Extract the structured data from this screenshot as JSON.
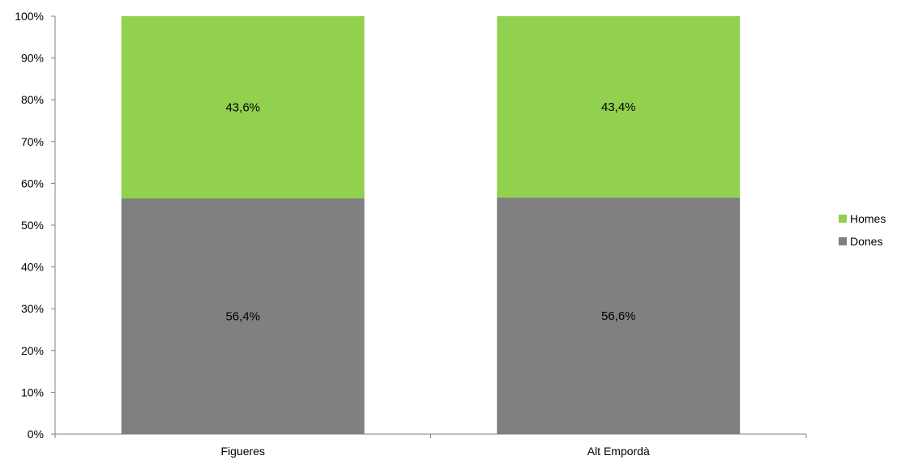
{
  "chart_data": {
    "type": "bar",
    "stacked": "percent",
    "categories": [
      "Figueres",
      "Alt Empordà"
    ],
    "series": [
      {
        "name": "Dones",
        "values": [
          56.4,
          56.6
        ],
        "labels": [
          "56,4%",
          "56,6%"
        ],
        "color": "#808080"
      },
      {
        "name": "Homes",
        "values": [
          43.6,
          43.4
        ],
        "labels": [
          "43,6%",
          "43,4%"
        ],
        "color": "#92d050"
      }
    ],
    "y_ticks": [
      "0%",
      "10%",
      "20%",
      "30%",
      "40%",
      "50%",
      "60%",
      "70%",
      "80%",
      "90%",
      "100%"
    ],
    "ylim": [
      0,
      100
    ],
    "grid": false,
    "legend": {
      "position": "right",
      "order": [
        "Homes",
        "Dones"
      ]
    },
    "axis_color": "#808080"
  }
}
